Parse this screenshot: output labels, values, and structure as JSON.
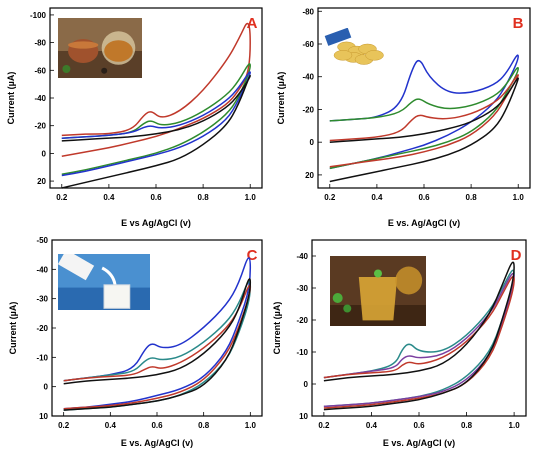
{
  "colors": {
    "black": "#111111",
    "blue": "#2233cc",
    "green": "#2e8b2e",
    "red": "#c0392b",
    "teal": "#2a8a8a",
    "purple": "#7b3fa0",
    "letter": "#e03020"
  },
  "chart_data": [
    {
      "type": "line",
      "panel": "A",
      "xlabel": "E vs Ag/AgCl (v)",
      "ylabel": "Current (µA)",
      "xlim": [
        0.15,
        1.05
      ],
      "ylim": [
        25,
        -105
      ],
      "xticks": [
        0.2,
        0.4,
        0.6,
        0.8,
        1.0
      ],
      "xtick_labels": [
        "0.2",
        "0.4",
        "0.6",
        "0.8",
        "1.0"
      ],
      "yticks": [
        -100,
        -80,
        -60,
        -40,
        -20,
        0,
        20
      ],
      "ytick_labels": [
        "-100",
        "-80",
        "-60",
        "-40",
        "-20",
        "0",
        "20"
      ],
      "inset": "tea leaves and cups of tea",
      "series": [
        {
          "color": "red",
          "x": [
            0.2,
            0.3,
            0.4,
            0.5,
            0.55,
            0.58,
            0.62,
            0.7,
            0.8,
            0.9,
            0.95,
            1.0,
            1.0,
            0.95,
            0.9,
            0.8,
            0.7,
            0.6,
            0.5,
            0.4,
            0.3,
            0.2
          ],
          "y": [
            -13,
            -14,
            -14,
            -17,
            -28,
            -31,
            -25,
            -30,
            -45,
            -67,
            -82,
            -100,
            -60,
            -45,
            -35,
            -25,
            -18,
            -12,
            -8,
            -4,
            -1,
            2
          ]
        },
        {
          "color": "green",
          "x": [
            0.2,
            0.3,
            0.4,
            0.5,
            0.55,
            0.58,
            0.62,
            0.7,
            0.8,
            0.9,
            0.95,
            1.0,
            1.0,
            0.95,
            0.9,
            0.8,
            0.7,
            0.6,
            0.5,
            0.4,
            0.3,
            0.2
          ],
          "y": [
            -11,
            -12,
            -13,
            -15,
            -22,
            -24,
            -20,
            -22,
            -30,
            -42,
            -52,
            -67,
            -60,
            -40,
            -28,
            -15,
            -6,
            0,
            4,
            8,
            12,
            15
          ]
        },
        {
          "color": "blue",
          "x": [
            0.2,
            0.3,
            0.4,
            0.5,
            0.55,
            0.58,
            0.62,
            0.7,
            0.8,
            0.9,
            0.95,
            1.0,
            1.0,
            0.95,
            0.9,
            0.8,
            0.7,
            0.6,
            0.5,
            0.4,
            0.3,
            0.2
          ],
          "y": [
            -11,
            -12,
            -13,
            -15,
            -19,
            -20,
            -18,
            -20,
            -27,
            -38,
            -47,
            -60,
            -57,
            -38,
            -24,
            -12,
            -4,
            1,
            5,
            9,
            13,
            16
          ]
        },
        {
          "color": "black",
          "x": [
            0.2,
            0.3,
            0.4,
            0.5,
            0.6,
            0.7,
            0.8,
            0.9,
            0.95,
            1.0,
            1.0,
            0.95,
            0.9,
            0.8,
            0.7,
            0.6,
            0.5,
            0.4,
            0.3,
            0.2
          ],
          "y": [
            -9,
            -10,
            -11,
            -12,
            -14,
            -17,
            -23,
            -33,
            -42,
            -55,
            -57,
            -35,
            -20,
            -6,
            4,
            9,
            13,
            17,
            21,
            25
          ]
        }
      ]
    },
    {
      "type": "line",
      "panel": "B",
      "xlabel": "E vs. Ag/AgCl (v)",
      "ylabel": "Current (µA)",
      "xlim": [
        0.15,
        1.05
      ],
      "ylim": [
        28,
        -82
      ],
      "xticks": [
        0.2,
        0.4,
        0.6,
        0.8,
        1.0
      ],
      "xtick_labels": [
        "0.2",
        "0.4",
        "0.6",
        "0.8",
        "1.0"
      ],
      "yticks": [
        -80,
        -60,
        -40,
        -20,
        0,
        20
      ],
      "ytick_labels": [
        "-80",
        "-60",
        "-40",
        "-20",
        "0",
        "20"
      ],
      "inset": "potato chips spilling from a bag",
      "series": [
        {
          "color": "blue",
          "x": [
            0.2,
            0.3,
            0.4,
            0.5,
            0.55,
            0.58,
            0.62,
            0.7,
            0.8,
            0.9,
            0.95,
            1.0,
            1.0,
            0.95,
            0.9,
            0.8,
            0.7,
            0.6,
            0.5,
            0.4,
            0.3,
            0.2
          ],
          "y": [
            -13,
            -14,
            -15,
            -22,
            -45,
            -52,
            -40,
            -30,
            -30,
            -35,
            -42,
            -55,
            -50,
            -35,
            -24,
            -12,
            -4,
            2,
            6,
            10,
            13,
            16
          ]
        },
        {
          "color": "green",
          "x": [
            0.2,
            0.3,
            0.4,
            0.5,
            0.55,
            0.58,
            0.62,
            0.7,
            0.8,
            0.9,
            0.95,
            1.0,
            1.0,
            0.95,
            0.9,
            0.8,
            0.7,
            0.6,
            0.5,
            0.4,
            0.3,
            0.2
          ],
          "y": [
            -13,
            -14,
            -15,
            -18,
            -25,
            -27,
            -23,
            -20,
            -22,
            -28,
            -35,
            -47,
            -43,
            -30,
            -18,
            -6,
            0,
            4,
            7,
            10,
            13,
            16
          ]
        },
        {
          "color": "red",
          "x": [
            0.2,
            0.3,
            0.4,
            0.5,
            0.55,
            0.58,
            0.62,
            0.7,
            0.8,
            0.9,
            0.95,
            1.0,
            1.0,
            0.95,
            0.9,
            0.8,
            0.7,
            0.6,
            0.5,
            0.4,
            0.3,
            0.2
          ],
          "y": [
            -1,
            -2,
            -3,
            -6,
            -14,
            -17,
            -15,
            -14,
            -17,
            -24,
            -31,
            -42,
            -40,
            -28,
            -16,
            -4,
            2,
            6,
            9,
            11,
            13,
            15
          ]
        },
        {
          "color": "black",
          "x": [
            0.2,
            0.3,
            0.4,
            0.5,
            0.6,
            0.7,
            0.8,
            0.9,
            0.95,
            1.0,
            1.0,
            0.95,
            0.9,
            0.8,
            0.7,
            0.6,
            0.5,
            0.4,
            0.3,
            0.2
          ],
          "y": [
            0,
            -1,
            -2,
            -3,
            -5,
            -8,
            -12,
            -20,
            -28,
            -40,
            -38,
            -20,
            -8,
            2,
            8,
            12,
            15,
            18,
            21,
            24
          ]
        }
      ]
    },
    {
      "type": "line",
      "panel": "C",
      "xlabel": "E vs. Ag/AgCl (v)",
      "ylabel": "Current (µA)",
      "xlim": [
        0.15,
        1.05
      ],
      "ylim": [
        10,
        -50
      ],
      "xticks": [
        0.2,
        0.4,
        0.6,
        0.8,
        1.0
      ],
      "xtick_labels": [
        "0.2",
        "0.4",
        "0.6",
        "0.8",
        "1.0"
      ],
      "yticks": [
        -50,
        -40,
        -30,
        -20,
        -10,
        0,
        10
      ],
      "ytick_labels": [
        "-50",
        "-40",
        "-30",
        "-20",
        "-10",
        "0",
        "10"
      ],
      "inset": "milk pouring into a glass",
      "series": [
        {
          "color": "blue",
          "x": [
            0.2,
            0.3,
            0.4,
            0.5,
            0.55,
            0.58,
            0.62,
            0.7,
            0.8,
            0.9,
            0.95,
            1.0,
            1.0,
            0.95,
            0.9,
            0.8,
            0.7,
            0.6,
            0.5,
            0.4,
            0.3,
            0.2
          ],
          "y": [
            -2,
            -3,
            -4,
            -6,
            -13,
            -15,
            -13,
            -14,
            -20,
            -28,
            -35,
            -47,
            -34,
            -22,
            -12,
            -3,
            1,
            3,
            5,
            6,
            7,
            7.5
          ]
        },
        {
          "color": "teal",
          "x": [
            0.2,
            0.3,
            0.4,
            0.5,
            0.55,
            0.58,
            0.62,
            0.7,
            0.8,
            0.9,
            0.95,
            1.0,
            1.0,
            0.95,
            0.9,
            0.8,
            0.7,
            0.6,
            0.5,
            0.4,
            0.3,
            0.2
          ],
          "y": [
            -2,
            -3,
            -4,
            -5,
            -9,
            -10,
            -9,
            -10,
            -15,
            -22,
            -28,
            -38,
            -30,
            -18,
            -9,
            -1,
            3,
            5,
            6,
            7,
            7.5,
            8
          ]
        },
        {
          "color": "red",
          "x": [
            0.2,
            0.3,
            0.4,
            0.5,
            0.55,
            0.58,
            0.62,
            0.7,
            0.8,
            0.9,
            0.95,
            1.0,
            1.0,
            0.95,
            0.9,
            0.8,
            0.7,
            0.6,
            0.5,
            0.4,
            0.3,
            0.2
          ],
          "y": [
            -2,
            -3,
            -3.5,
            -4,
            -6,
            -7,
            -6,
            -8,
            -13,
            -20,
            -26,
            -36,
            -32,
            -20,
            -11,
            -2,
            2,
            4,
            5.5,
            6.5,
            7,
            7.5
          ]
        },
        {
          "color": "black",
          "x": [
            0.2,
            0.3,
            0.4,
            0.5,
            0.6,
            0.7,
            0.8,
            0.9,
            0.95,
            1.0,
            1.0,
            0.95,
            0.9,
            0.8,
            0.7,
            0.6,
            0.5,
            0.4,
            0.3,
            0.2
          ],
          "y": [
            -1,
            -2,
            -2.5,
            -3,
            -4,
            -6,
            -11,
            -19,
            -26,
            -39,
            -32,
            -19,
            -9,
            0,
            3,
            5,
            6,
            7,
            7.5,
            8
          ]
        }
      ]
    },
    {
      "type": "line",
      "panel": "D",
      "xlabel": "E vs. Ag/AgCl (v)",
      "ylabel": "Current (µA)",
      "xlim": [
        0.15,
        1.05
      ],
      "ylim": [
        10,
        -45
      ],
      "xticks": [
        0.2,
        0.4,
        0.6,
        0.8,
        1.0
      ],
      "xtick_labels": [
        "0.2",
        "0.4",
        "0.6",
        "0.8",
        "1.0"
      ],
      "yticks": [
        -40,
        -30,
        -20,
        -10,
        0,
        10
      ],
      "ytick_labels": [
        "-40",
        "-30",
        "-20",
        "-10",
        "0",
        "10"
      ],
      "inset": "glass of herbal tea with mint leaves",
      "series": [
        {
          "color": "teal",
          "x": [
            0.2,
            0.3,
            0.4,
            0.5,
            0.53,
            0.56,
            0.6,
            0.7,
            0.8,
            0.9,
            0.95,
            1.0,
            1.0,
            0.95,
            0.9,
            0.8,
            0.7,
            0.6,
            0.5,
            0.4,
            0.3,
            0.2
          ],
          "y": [
            -2,
            -3,
            -4,
            -6,
            -11,
            -13,
            -10,
            -10,
            -15,
            -23,
            -30,
            -37,
            -32,
            -20,
            -10,
            -2,
            2,
            4,
            5,
            6,
            6.5,
            7
          ]
        },
        {
          "color": "purple",
          "x": [
            0.2,
            0.3,
            0.4,
            0.5,
            0.53,
            0.56,
            0.6,
            0.7,
            0.8,
            0.9,
            0.95,
            1.0,
            1.0,
            0.95,
            0.9,
            0.8,
            0.7,
            0.6,
            0.5,
            0.4,
            0.3,
            0.2
          ],
          "y": [
            -2,
            -3,
            -4,
            -5,
            -8,
            -9,
            -8,
            -9,
            -14,
            -22,
            -29,
            -36,
            -31,
            -19,
            -9,
            -1,
            2.5,
            4,
            5,
            6,
            6.5,
            7
          ]
        },
        {
          "color": "red",
          "x": [
            0.2,
            0.3,
            0.4,
            0.5,
            0.53,
            0.56,
            0.6,
            0.7,
            0.8,
            0.9,
            0.95,
            1.0,
            1.0,
            0.95,
            0.9,
            0.8,
            0.7,
            0.6,
            0.5,
            0.4,
            0.3,
            0.2
          ],
          "y": [
            -2,
            -3,
            -3.5,
            -4,
            -6,
            -7,
            -6,
            -8,
            -13,
            -21,
            -28,
            -35,
            -30,
            -18,
            -8,
            0,
            3,
            4.5,
            5.5,
            6.5,
            7,
            7.5
          ]
        },
        {
          "color": "black",
          "x": [
            0.2,
            0.3,
            0.4,
            0.5,
            0.6,
            0.7,
            0.8,
            0.9,
            0.95,
            1.0,
            1.0,
            0.95,
            0.9,
            0.8,
            0.7,
            0.6,
            0.5,
            0.4,
            0.3,
            0.2
          ],
          "y": [
            -1,
            -2,
            -2.5,
            -3,
            -4,
            -6,
            -12,
            -22,
            -31,
            -40,
            -33,
            -20,
            -9,
            0,
            3,
            5,
            6,
            7,
            7.5,
            8
          ]
        }
      ]
    }
  ]
}
